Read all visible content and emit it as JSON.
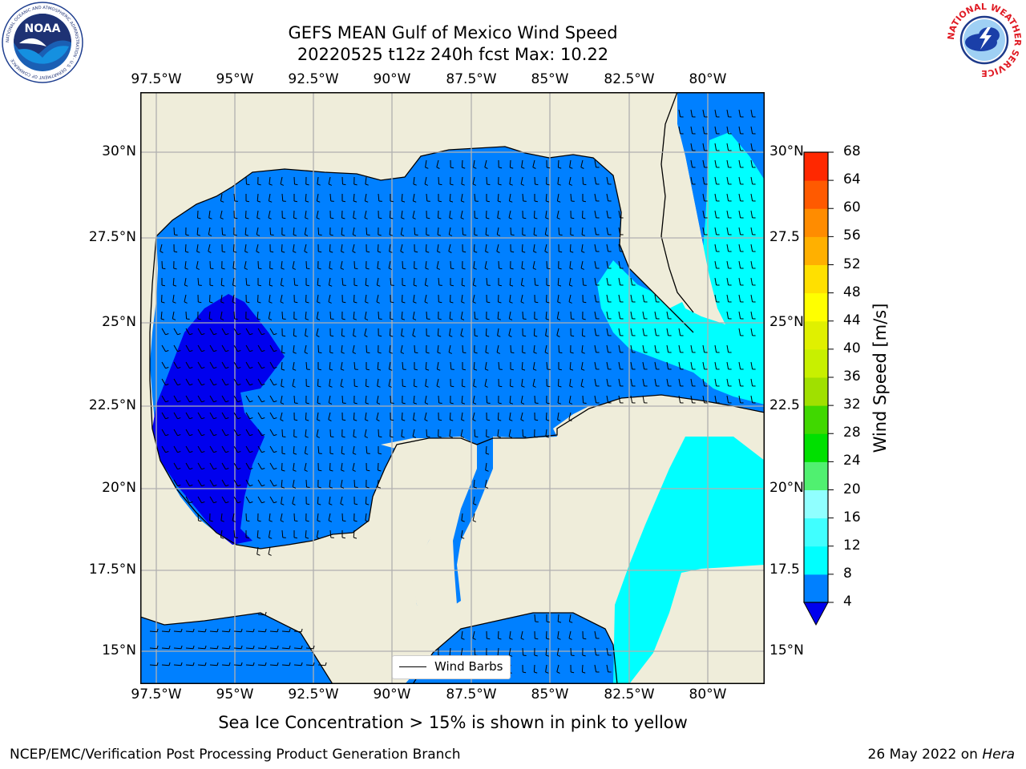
{
  "header": {
    "title_line1": "GEFS MEAN Gulf of Mexico Wind Speed",
    "title_line2": "20220525 t12z 240h fcst   Max: 10.22"
  },
  "map": {
    "lon_ticks": [
      "97.5°W",
      "95°W",
      "92.5°W",
      "90°W",
      "87.5°W",
      "85°W",
      "82.5°W",
      "80°W"
    ],
    "lat_ticks_left": [
      "30°N",
      "27.5°N",
      "25°N",
      "22.5°N",
      "20°N",
      "17.5°N",
      "15°N"
    ],
    "lat_ticks_right": [
      "30°N",
      "27.5",
      "25°N",
      "22.5",
      "20°N",
      "17.5",
      "15°N"
    ],
    "legend_label": "Wind Barbs",
    "land_color": "#efedda",
    "grid_color": "#b0b0b0"
  },
  "colorbar": {
    "title": "Wind Speed [m/s]",
    "ticks": [
      "4",
      "8",
      "12",
      "16",
      "20",
      "24",
      "28",
      "32",
      "36",
      "40",
      "44",
      "48",
      "52",
      "56",
      "60",
      "64",
      "68"
    ],
    "colors": [
      "#0080ff",
      "#00ffff",
      "#40ffff",
      "#90ffff",
      "#50f070",
      "#00e000",
      "#40d800",
      "#a0e000",
      "#c8f000",
      "#e0f000",
      "#ffff00",
      "#ffe000",
      "#ffb000",
      "#ff8c00",
      "#ff5a00",
      "#ff2800"
    ],
    "extend_color": "#0000ee"
  },
  "footer": {
    "note": "Sea Ice Concentration > 15% is shown in pink to yellow",
    "left": "NCEP/EMC/Verification Post Processing Product Generation Branch",
    "right_date": "26 May 2022 on",
    "right_host": "Hera"
  },
  "logos": {
    "noaa_text": "NOAA",
    "noaa_ring_text": "NATIONAL OCEANIC AND ATMOSPHERIC ADMINISTRATION · U.S. DEPARTMENT OF COMMERCE",
    "nws_ring_text": "NATIONAL WEATHER SERVICE"
  }
}
